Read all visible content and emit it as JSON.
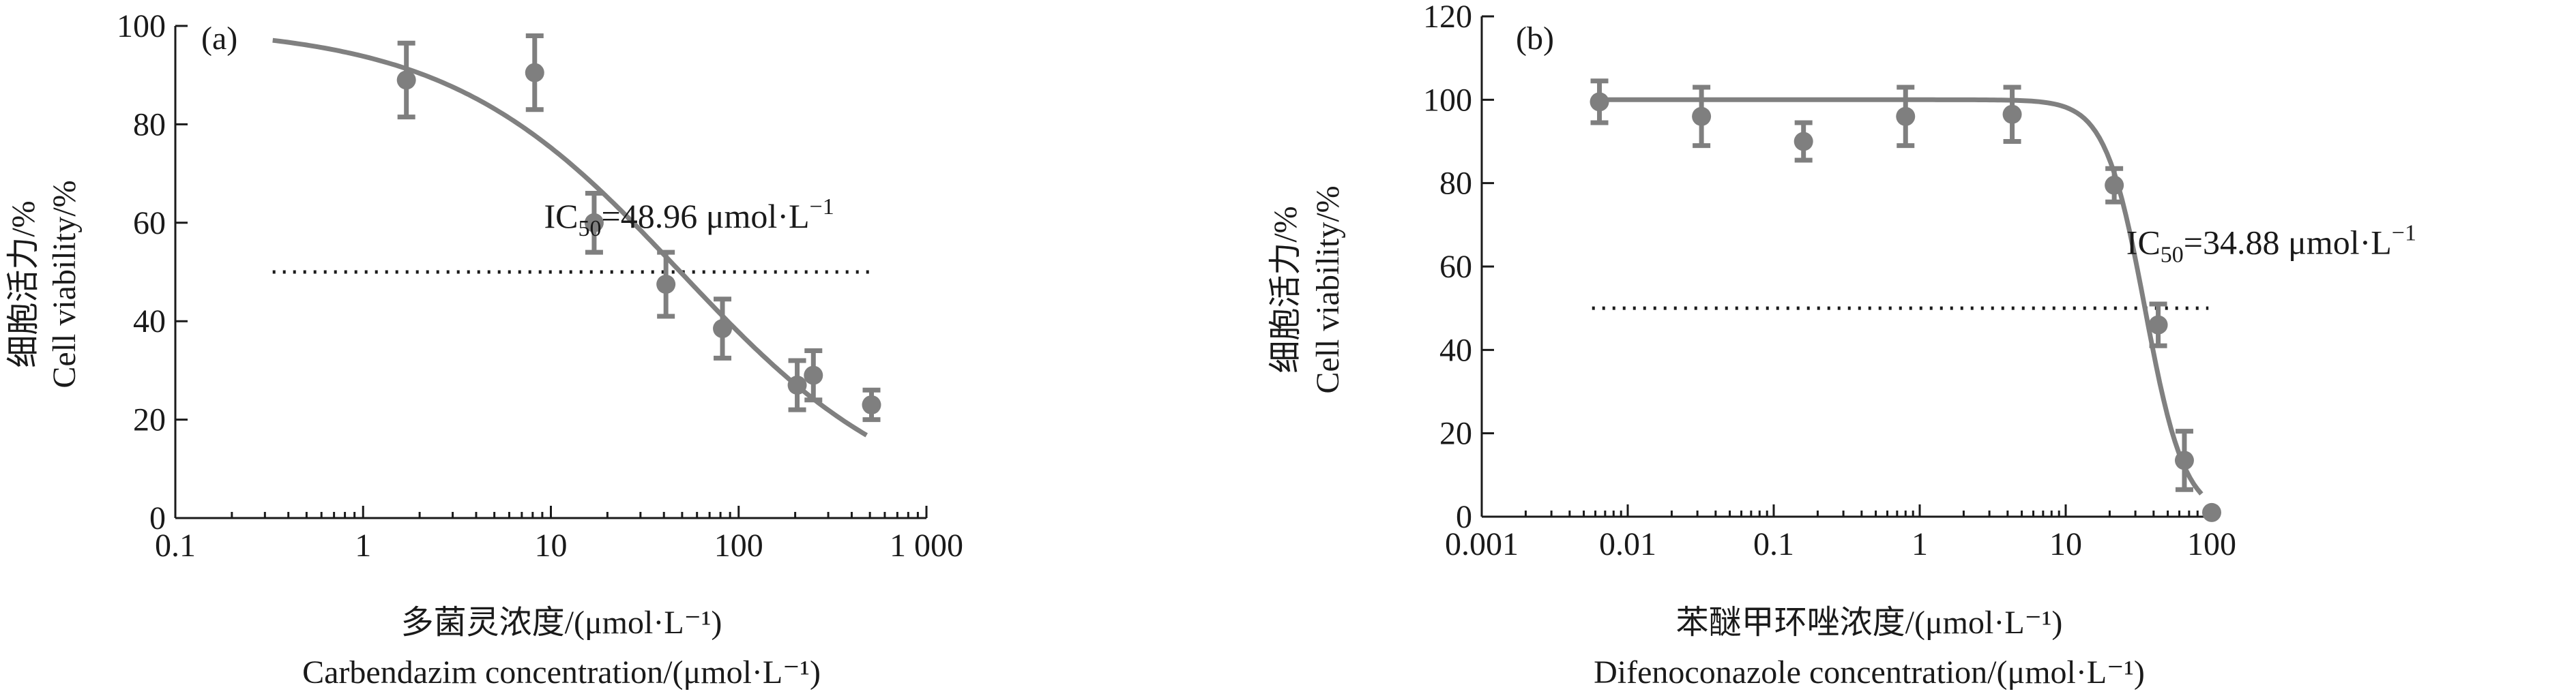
{
  "chart_data": [
    {
      "type": "scatter",
      "panel_label": "(a)",
      "ylabel_cn": "细胞活力/%",
      "ylabel_en": "Cell viability/%",
      "xlabel_cn": "多菌灵浓度/(μmol·L⁻¹)",
      "xlabel_en": "Carbendazim concentration/(μmol·L⁻¹)",
      "x_scale": "log",
      "xlim": [
        0.1,
        1000
      ],
      "ylim": [
        0,
        100
      ],
      "x_ticks": [
        0.1,
        1,
        10,
        100,
        1000
      ],
      "x_tick_labels": [
        "0.1",
        "1",
        "10",
        "100",
        "1 000"
      ],
      "y_ticks": [
        0,
        20,
        40,
        60,
        80,
        100
      ],
      "y_tick_labels": [
        "0",
        "20",
        "40",
        "60",
        "80",
        "100"
      ],
      "points": [
        {
          "x": 1.7,
          "y": 89,
          "err": 7.5
        },
        {
          "x": 8.2,
          "y": 90.5,
          "err": 7.5
        },
        {
          "x": 17,
          "y": 60,
          "err": 6
        },
        {
          "x": 41,
          "y": 47.5,
          "err": 6.5
        },
        {
          "x": 82,
          "y": 38.5,
          "err": 6
        },
        {
          "x": 205,
          "y": 27,
          "err": 5
        },
        {
          "x": 250,
          "y": 29,
          "err": 5
        },
        {
          "x": 510,
          "y": 23,
          "err": 3
        }
      ],
      "fit": {
        "top": 100,
        "bottom": 0,
        "ic50": 48.96,
        "hill": 0.7,
        "x_from": 0.33,
        "x_to": 480
      },
      "reference_y": 50,
      "reference_x_from": 0.33,
      "reference_x_to": 530,
      "annotation": {
        "prefix": "IC",
        "subscript": "50",
        "text": "=48.96 μmol·L",
        "superscript": "−1",
        "x": 9.2,
        "y": 59
      }
    },
    {
      "type": "scatter",
      "panel_label": "(b)",
      "ylabel_cn": "细胞活力/%",
      "ylabel_en": "Cell viability/%",
      "xlabel_cn": "苯醚甲环唑浓度/(μmol·L⁻¹)",
      "xlabel_en": "Difenoconazole concentration/(μmol·L⁻¹)",
      "x_scale": "log",
      "xlim": [
        0.001,
        100
      ],
      "ylim": [
        0,
        120
      ],
      "x_ticks": [
        0.001,
        0.01,
        0.1,
        1,
        10,
        100
      ],
      "x_tick_labels": [
        "0.001",
        "0.01",
        "0.1",
        "1",
        "10",
        "100"
      ],
      "y_ticks": [
        0,
        20,
        40,
        60,
        80,
        100,
        120
      ],
      "y_tick_labels": [
        "0",
        "20",
        "40",
        "60",
        "80",
        "100",
        "120"
      ],
      "points": [
        {
          "x": 0.0064,
          "y": 99.5,
          "err": 5
        },
        {
          "x": 0.032,
          "y": 96,
          "err": 7
        },
        {
          "x": 0.16,
          "y": 90,
          "err": 4.5
        },
        {
          "x": 0.8,
          "y": 96,
          "err": 7
        },
        {
          "x": 4.3,
          "y": 96.5,
          "err": 6.5
        },
        {
          "x": 21.5,
          "y": 79.5,
          "err": 4
        },
        {
          "x": 43,
          "y": 46,
          "err": 5
        },
        {
          "x": 65,
          "y": 13.5,
          "err": 7
        },
        {
          "x": 100,
          "y": 1,
          "err": 0
        }
      ],
      "fit": {
        "top": 100,
        "bottom": 0,
        "ic50": 34.88,
        "hill": 3.2,
        "x_from": 0.0062,
        "x_to": 85
      },
      "reference_y": 50,
      "reference_x_from": 0.0057,
      "reference_x_to": 95,
      "annotation": {
        "prefix": "IC",
        "subscript": "50",
        "text": "=34.88 μmol·L",
        "superscript": "−1",
        "x": 26,
        "y": 63
      }
    }
  ]
}
